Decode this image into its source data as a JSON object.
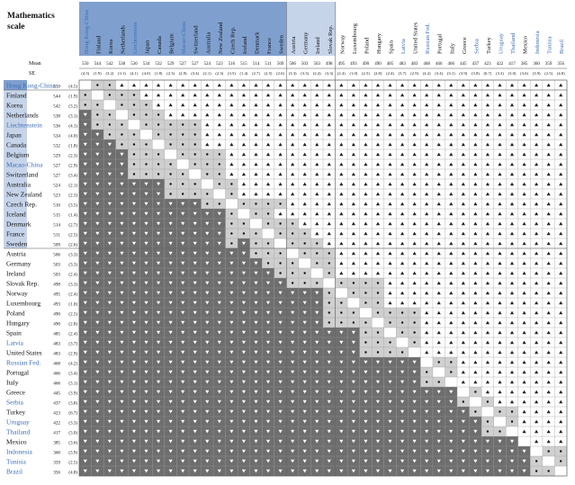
{
  "title_lines": [
    "Mathematics",
    "scale"
  ],
  "mean_label": "Mean",
  "se_label": "SE",
  "colors": {
    "header_dark": "#7f9fce",
    "header_light": "#c6d4ea",
    "partner_text": "#3d6eb4",
    "oecd_text": "#111111",
    "above": "#ffffff",
    "below": "#6e6e6e",
    "same": "#cfcfcf",
    "diagonal": "#ffffff",
    "grid": "#999999"
  },
  "legend_symbols": {
    "above": "triangle-up-icon",
    "below": "triangle-down-icon",
    "same": "dot-icon"
  },
  "countries": [
    {
      "name": "Hong Kong-China",
      "mean": "550",
      "se": "(4.5)",
      "partner": true
    },
    {
      "name": "Finland",
      "mean": "544",
      "se": "(1.9)",
      "partner": false
    },
    {
      "name": "Korea",
      "mean": "542",
      "se": "(3.2)",
      "partner": false
    },
    {
      "name": "Netherlands",
      "mean": "538",
      "se": "(3.1)",
      "partner": false
    },
    {
      "name": "Liechtenstein",
      "mean": "536",
      "se": "(4.1)",
      "partner": true
    },
    {
      "name": "Japan",
      "mean": "534",
      "se": "(4.0)",
      "partner": false
    },
    {
      "name": "Canada",
      "mean": "532",
      "se": "(1.8)",
      "partner": false
    },
    {
      "name": "Belgium",
      "mean": "529",
      "se": "(2.3)",
      "partner": false
    },
    {
      "name": "Macao-China",
      "mean": "527",
      "se": "(2.9)",
      "partner": true
    },
    {
      "name": "Switzerland",
      "mean": "527",
      "se": "(3.4)",
      "partner": false
    },
    {
      "name": "Australia",
      "mean": "524",
      "se": "(2.1)",
      "partner": false
    },
    {
      "name": "New Zealand",
      "mean": "523",
      "se": "(2.3)",
      "partner": false
    },
    {
      "name": "Czech Rep.",
      "mean": "516",
      "se": "(3.5)",
      "partner": false
    },
    {
      "name": "Iceland",
      "mean": "515",
      "se": "(1.4)",
      "partner": false
    },
    {
      "name": "Denmark",
      "mean": "514",
      "se": "(2.7)",
      "partner": false
    },
    {
      "name": "France",
      "mean": "511",
      "se": "(2.5)",
      "partner": false
    },
    {
      "name": "Sweden",
      "mean": "509",
      "se": "(2.6)",
      "partner": false
    },
    {
      "name": "Austria",
      "mean": "506",
      "se": "(3.3)",
      "partner": false
    },
    {
      "name": "Germany",
      "mean": "503",
      "se": "(3.3)",
      "partner": false
    },
    {
      "name": "Ireland",
      "mean": "503",
      "se": "(2.4)",
      "partner": false
    },
    {
      "name": "Slovak Rep.",
      "mean": "498",
      "se": "(3.3)",
      "partner": false
    },
    {
      "name": "Norway",
      "mean": "495",
      "se": "(2.4)",
      "partner": false
    },
    {
      "name": "Luxembourg",
      "mean": "493",
      "se": "(1.0)",
      "partner": false
    },
    {
      "name": "Poland",
      "mean": "490",
      "se": "(2.5)",
      "partner": false
    },
    {
      "name": "Hungary",
      "mean": "490",
      "se": "(2.8)",
      "partner": false
    },
    {
      "name": "Spain",
      "mean": "485",
      "se": "(2.4)",
      "partner": false
    },
    {
      "name": "Latvia",
      "mean": "483",
      "se": "(3.7)",
      "partner": true
    },
    {
      "name": "United States",
      "mean": "483",
      "se": "(2.9)",
      "partner": false
    },
    {
      "name": "Russian Fed.",
      "mean": "468",
      "se": "(4.2)",
      "partner": true
    },
    {
      "name": "Portugal",
      "mean": "466",
      "se": "(3.4)",
      "partner": false
    },
    {
      "name": "Italy",
      "mean": "466",
      "se": "(3.1)",
      "partner": false
    },
    {
      "name": "Greece",
      "mean": "445",
      "se": "(3.9)",
      "partner": false
    },
    {
      "name": "Serbia",
      "mean": "437",
      "se": "(3.8)",
      "partner": true
    },
    {
      "name": "Turkey",
      "mean": "423",
      "se": "(6.7)",
      "partner": false
    },
    {
      "name": "Uruguay",
      "mean": "422",
      "se": "(3.3)",
      "partner": true
    },
    {
      "name": "Thailand",
      "mean": "417",
      "se": "(3.0)",
      "partner": true
    },
    {
      "name": "Mexico",
      "mean": "385",
      "se": "(3.6)",
      "partner": false
    },
    {
      "name": "Indonesia",
      "mean": "360",
      "se": "(3.9)",
      "partner": true
    },
    {
      "name": "Tunisia",
      "mean": "359",
      "se": "(2.5)",
      "partner": true
    },
    {
      "name": "Brazil",
      "mean": "356",
      "se": "(4.8)",
      "partner": true
    }
  ],
  "header_bands": [
    {
      "from": 0,
      "to": 16,
      "tone": "dark"
    },
    {
      "from": 17,
      "to": 20,
      "tone": "light"
    }
  ],
  "row_bands": [
    {
      "from": 0,
      "to": 0,
      "tone": "dark"
    },
    {
      "from": 1,
      "to": 16,
      "tone": "light"
    },
    {
      "from": 17,
      "to": 39,
      "tone": "white"
    }
  ]
}
